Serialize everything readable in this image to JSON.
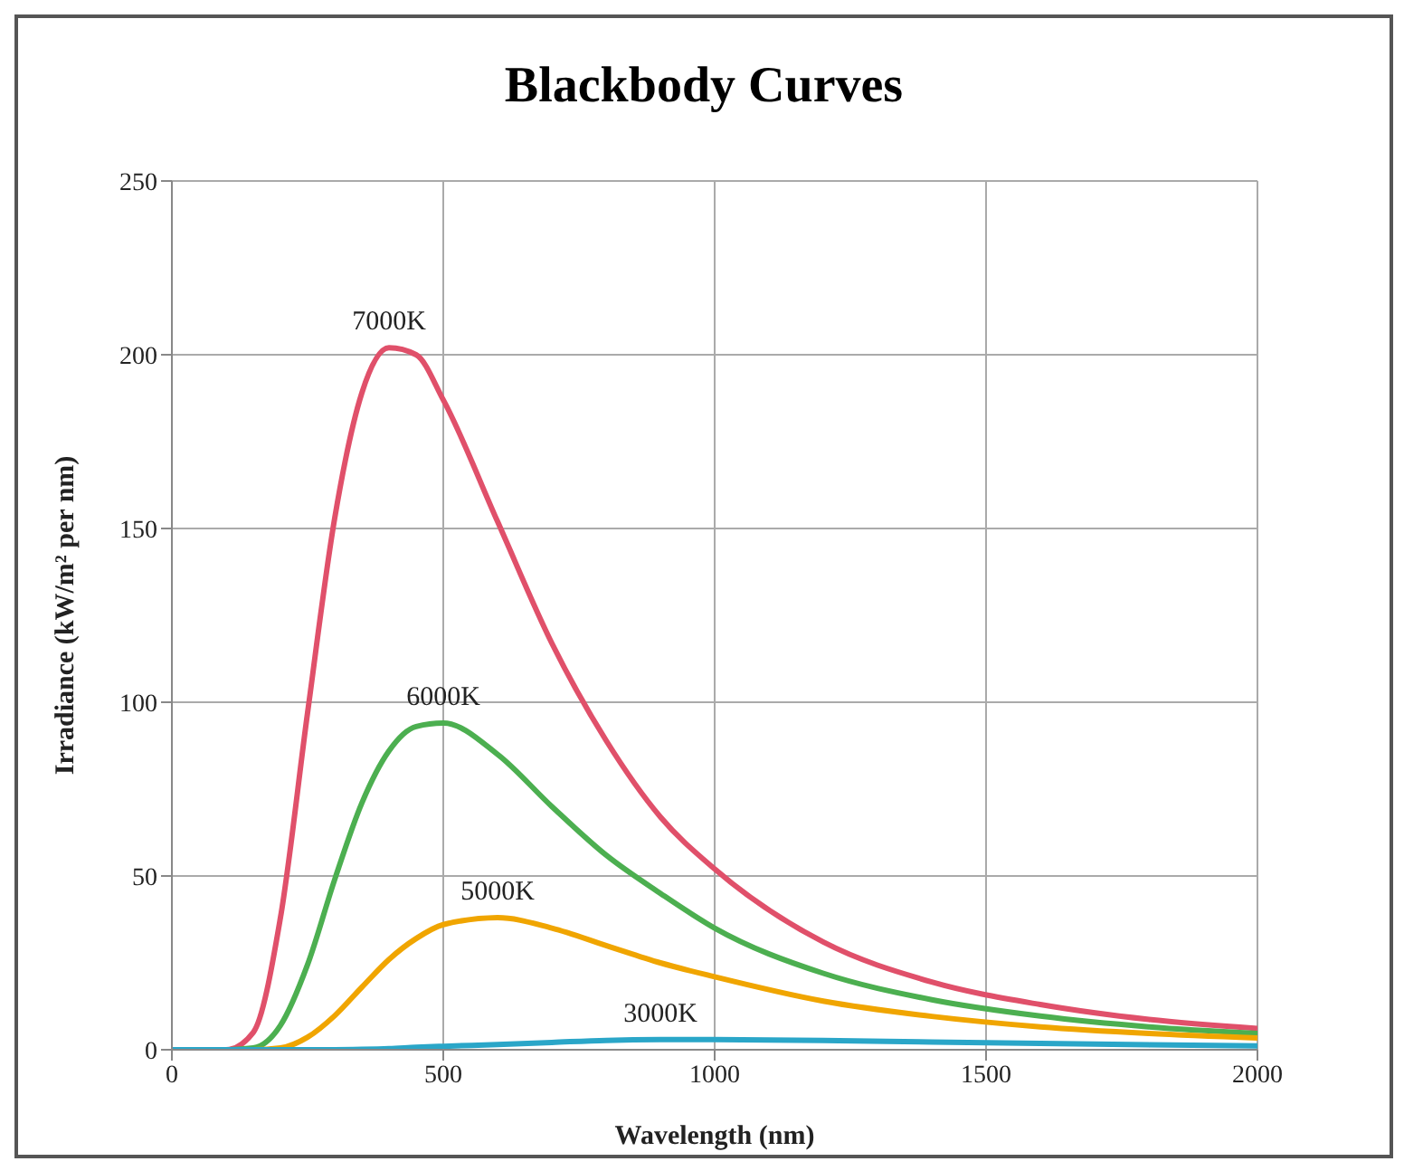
{
  "chart_data": {
    "type": "line",
    "title": "Blackbody Curves",
    "xlabel": "Wavelength (nm)",
    "ylabel": "Irradiance (kW/m² per nm)",
    "x": [
      0,
      100,
      150,
      200,
      250,
      300,
      350,
      400,
      450,
      500,
      600,
      700,
      800,
      900,
      1000,
      1200,
      1400,
      1600,
      1800,
      2000
    ],
    "series": [
      {
        "name": "7000K",
        "color": "#e0506a",
        "values": [
          0,
          0,
          5,
          38,
          97,
          153,
          189,
          202,
          200,
          187,
          152,
          117,
          89,
          67,
          52,
          31,
          19.5,
          13,
          8.7,
          6.1
        ]
      },
      {
        "name": "6000K",
        "color": "#4caf50",
        "values": [
          0,
          0,
          0.5,
          7,
          24.5,
          49,
          71,
          86,
          93,
          94,
          85,
          70,
          56,
          45,
          35,
          22,
          14.4,
          9.7,
          6.6,
          4.7
        ]
      },
      {
        "name": "5000K",
        "color": "#f0a500",
        "values": [
          0,
          0,
          0,
          0.5,
          3.6,
          9.8,
          18,
          26,
          32,
          36,
          38,
          35,
          30,
          25,
          21,
          14,
          9.6,
          6.6,
          4.7,
          3.4
        ]
      },
      {
        "name": "3000K",
        "color": "#2aa6c8",
        "values": [
          0,
          0,
          0,
          0,
          0,
          0,
          0.1,
          0.3,
          0.7,
          1,
          1.5,
          2.1,
          2.7,
          2.9,
          2.9,
          2.7,
          2.2,
          1.8,
          1.4,
          1.1
        ]
      }
    ],
    "xlim": [
      0,
      2000
    ],
    "xticks": [
      0,
      500,
      1000,
      1500,
      2000
    ],
    "ylim": [
      0,
      250
    ],
    "yticks": [
      0,
      50,
      100,
      150,
      200,
      250
    ],
    "grid": true,
    "legend": false,
    "marker": "none",
    "line_style": "solid"
  }
}
